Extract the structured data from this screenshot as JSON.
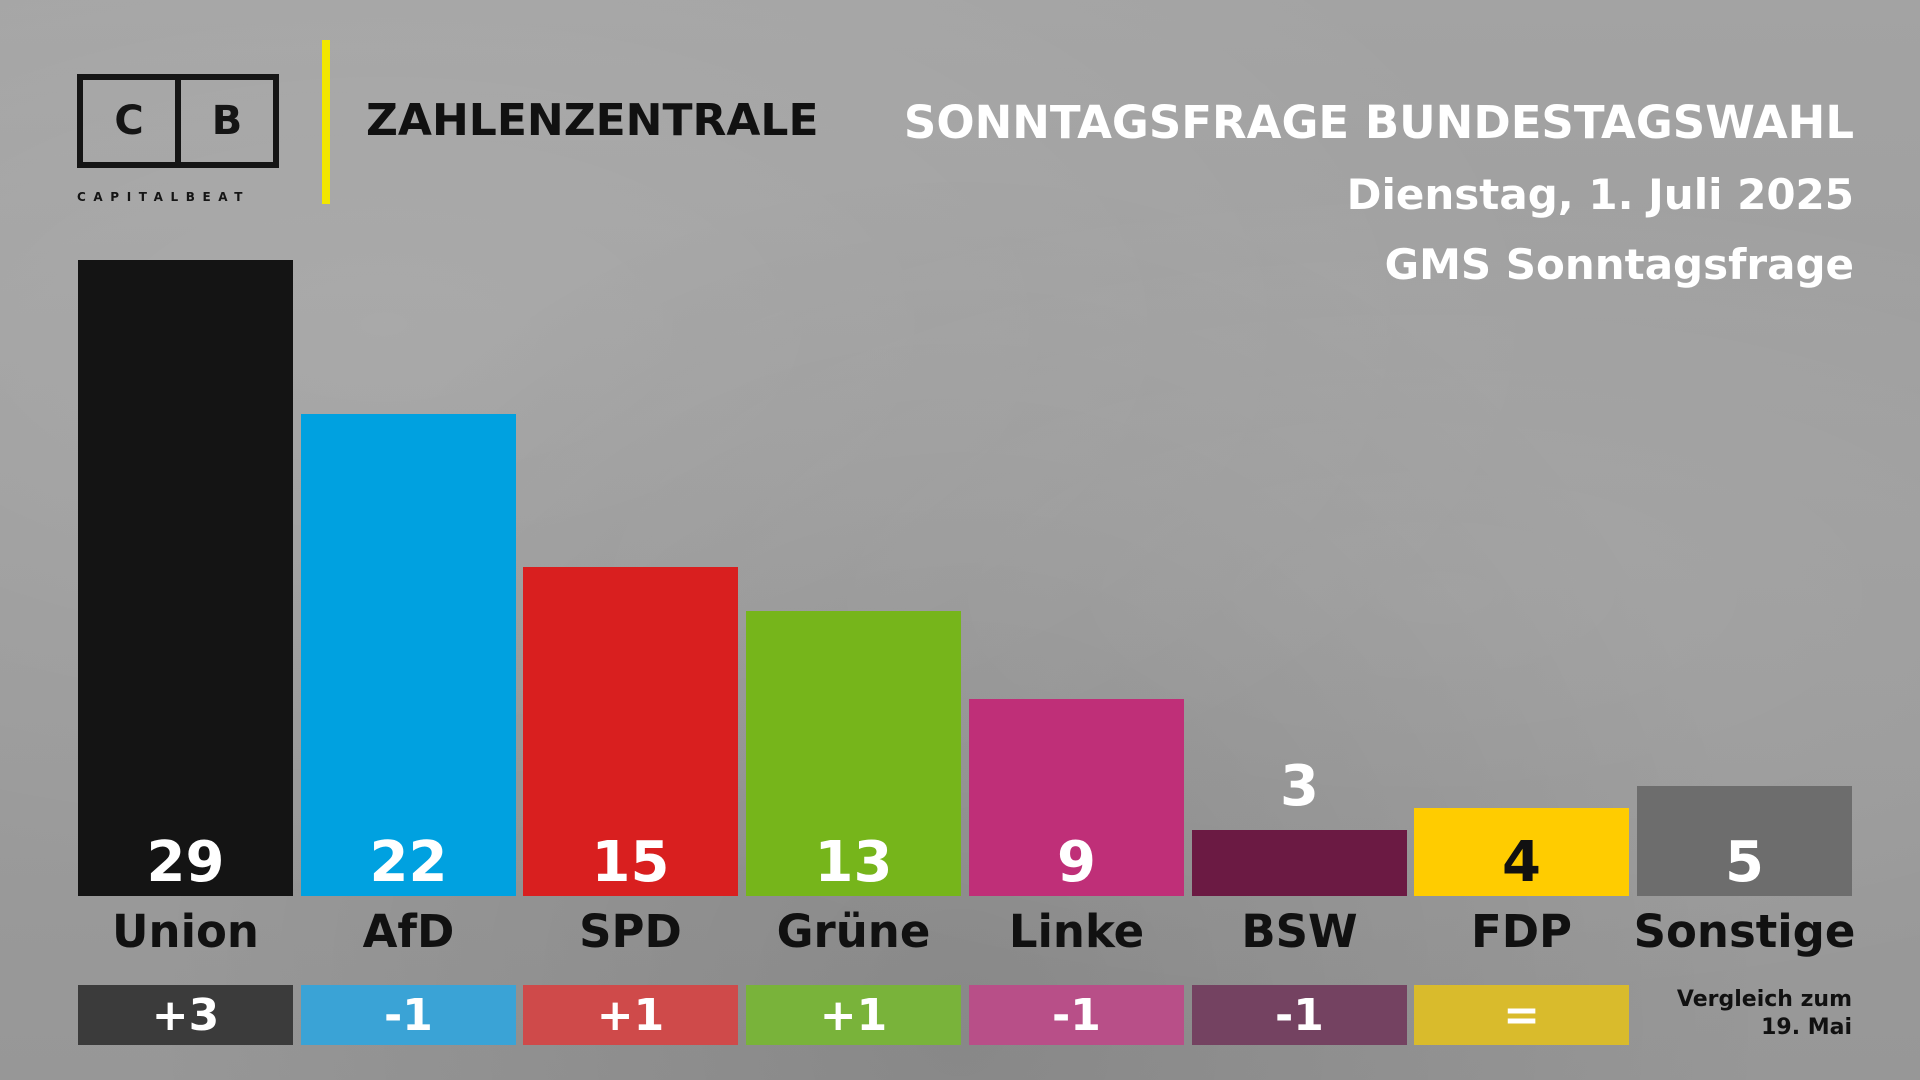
{
  "brand": {
    "logo_left": "C",
    "logo_right": "B",
    "logo_sub": "CAPITALBEAT",
    "section": "ZAHLENZENTRALE"
  },
  "header": {
    "title": "SONNTAGSFRAGE BUNDESTAGSWAHL",
    "date": "Dienstag, 1. Juli 2025",
    "source": "GMS Sonntagsfrage"
  },
  "chart_data": {
    "type": "bar",
    "categories": [
      "Union",
      "AfD",
      "SPD",
      "Grüne",
      "Linke",
      "BSW",
      "FDP",
      "Sonstige"
    ],
    "values": [
      29,
      22,
      15,
      13,
      9,
      3,
      4,
      5
    ],
    "value_labels": [
      "29",
      "22",
      "15",
      "13",
      "9",
      "3",
      "4",
      "5"
    ],
    "change_labels": [
      "+3",
      "-1",
      "+1",
      "+1",
      "-1",
      "-1",
      "="
    ],
    "colors": [
      "#141414",
      "#00a1e0",
      "#d91f1f",
      "#76b51b",
      "#bf2f78",
      "#6b1a43",
      "#ffcc00",
      "#6d6d6d"
    ],
    "change_colors": [
      "#3b3b3b",
      "#3aa3d6",
      "#cf4a4a",
      "#79b33a",
      "#b84f88",
      "#744261",
      "#d9bb2c"
    ],
    "value_label_colors": [
      "#ffffff",
      "#ffffff",
      "#ffffff",
      "#ffffff",
      "#ffffff",
      "#ffffff",
      "#111111",
      "#ffffff"
    ],
    "ylim": [
      0,
      30
    ],
    "grid": false,
    "footnote": [
      "Vergleich zum",
      "19. Mai"
    ]
  }
}
